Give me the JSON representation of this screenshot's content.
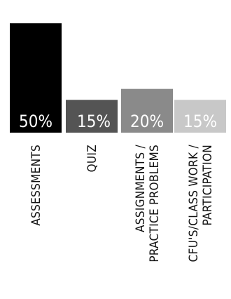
{
  "chart_data": {
    "type": "bar",
    "ylim": [
      0,
      60
    ],
    "grid": false,
    "legend": "none",
    "bars": [
      {
        "category_lines": [
          "ASSESSMENTS"
        ],
        "value": 50,
        "label": "50%",
        "color": "#000000"
      },
      {
        "category_lines": [
          "QUIZ"
        ],
        "value": 15,
        "label": "15%",
        "color": "#545454"
      },
      {
        "category_lines": [
          "ASSIGNMENTS /",
          "PRACTICE PROBLEMS"
        ],
        "value": 20,
        "label": "20%",
        "color": "#8a8a8a"
      },
      {
        "category_lines": [
          "CFU'S/CLASS WORK /",
          "PARTICIPATION"
        ],
        "value": 15,
        "label": "15%",
        "color": "#c8c8c8"
      }
    ]
  }
}
